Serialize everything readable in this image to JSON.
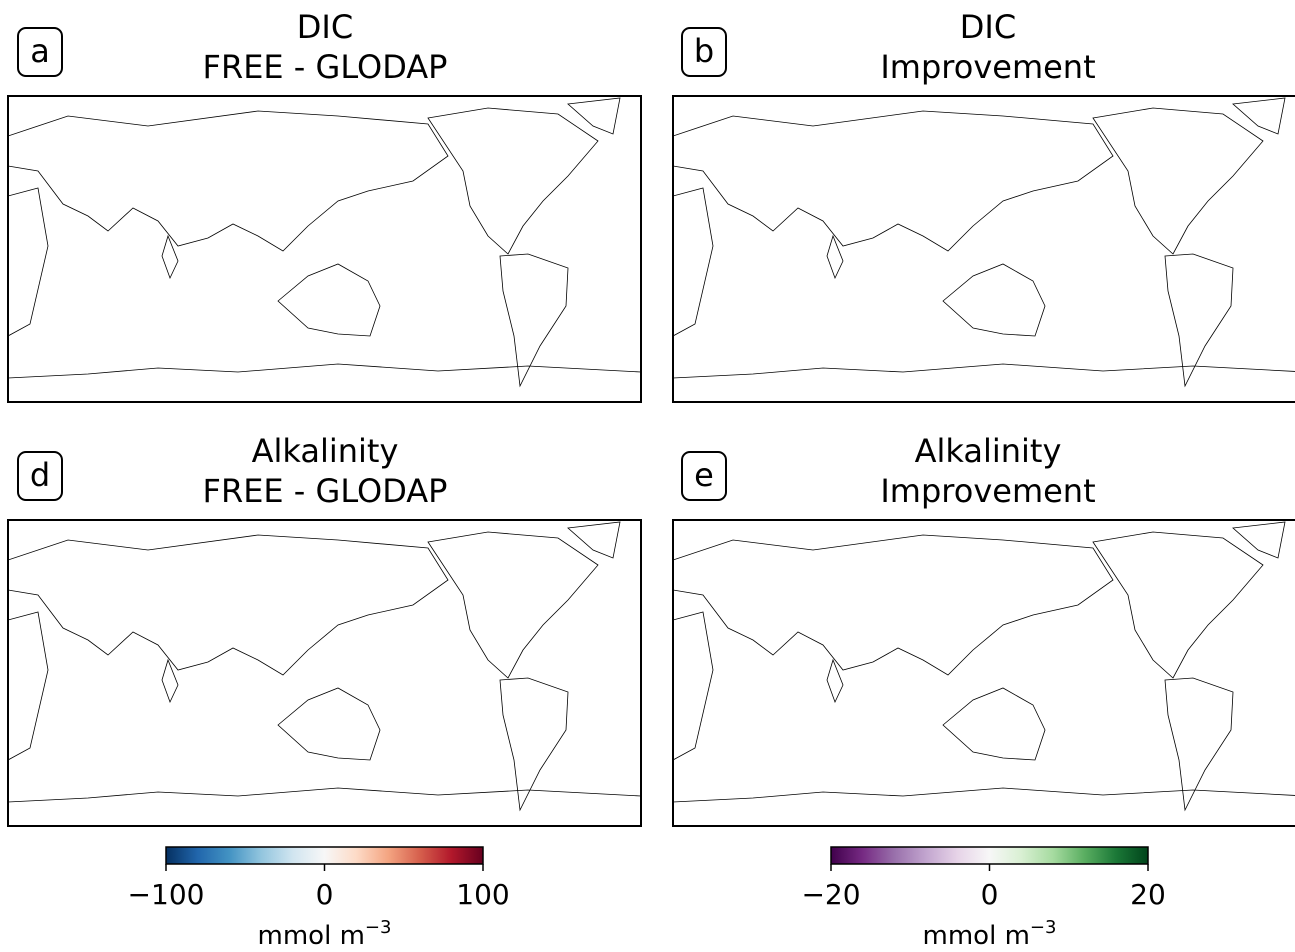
{
  "figure": {
    "panels": [
      {
        "label": "a",
        "title": [
          "DIC",
          "FREE - GLODAP"
        ],
        "colorbar": 0
      },
      {
        "label": "b",
        "title": [
          "DIC",
          "Improvement"
        ],
        "colorbar": 1
      },
      {
        "label": "d",
        "title": [
          "Alkalinity",
          "FREE - GLODAP"
        ],
        "colorbar": 0
      },
      {
        "label": "e",
        "title": [
          "Alkalinity",
          "Improvement"
        ],
        "colorbar": 1
      }
    ],
    "colorbars": [
      {
        "colors": [
          "#053061",
          "#2166ac",
          "#4393c3",
          "#92c5de",
          "#d1e5f0",
          "#f7f7f7",
          "#fddbc7",
          "#f4a582",
          "#d6604d",
          "#b2182b",
          "#67001f"
        ],
        "xlim": [
          -100,
          100
        ],
        "xticks": [
          {
            "value": -100,
            "label": "−100"
          },
          0,
          100
        ],
        "label": "mmol m",
        "label_superscript": "−3"
      },
      {
        "colors": [
          "#40004b",
          "#762a83",
          "#9970ab",
          "#c2a5cf",
          "#e7d4e8",
          "#f7f7f7",
          "#d9f0d3",
          "#a6dba0",
          "#5aae61",
          "#1b7837",
          "#00441b"
        ],
        "xlim": [
          -20,
          20
        ],
        "xticks": [
          {
            "value": -20,
            "label": "−20"
          },
          0,
          20
        ],
        "label": "mmol m",
        "label_superscript": "−3"
      }
    ]
  }
}
